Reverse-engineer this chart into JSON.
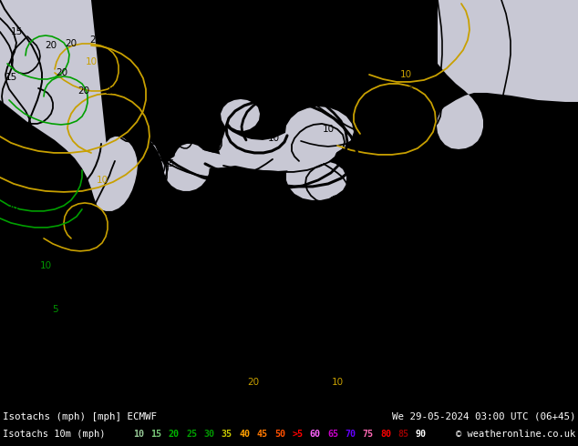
{
  "title_line1": "Isotachs (mph) [mph] ECMWF",
  "title_line2": "We 29-05-2024 03:00 UTC (06+45)",
  "label_left": "Isotachs 10m (mph)",
  "copyright": "© weatheronline.co.uk",
  "legend_values": [
    "10",
    "15",
    "20",
    "25",
    "30",
    "35",
    "40",
    "45",
    "50",
    ">5",
    "60",
    "65",
    "70",
    "75",
    "80",
    "85",
    "90"
  ],
  "legend_colors": [
    "#96c896",
    "#78c878",
    "#00b400",
    "#00a000",
    "#009600",
    "#c8c800",
    "#ffa000",
    "#ff7800",
    "#ff5000",
    "#ff0000",
    "#ff64ff",
    "#c800c8",
    "#6400ff",
    "#ff69b4",
    "#ff0000",
    "#960000",
    "#ffffff"
  ],
  "map_land_green": "#90d890",
  "map_sea_gray": "#c8c8d8",
  "map_sea_light": "#d8d8e8",
  "contour_black": "#000000",
  "contour_yellow": "#c8a000",
  "contour_green": "#00a000",
  "footer_bg": "#000000",
  "figsize": [
    6.34,
    4.9
  ],
  "dpi": 100
}
